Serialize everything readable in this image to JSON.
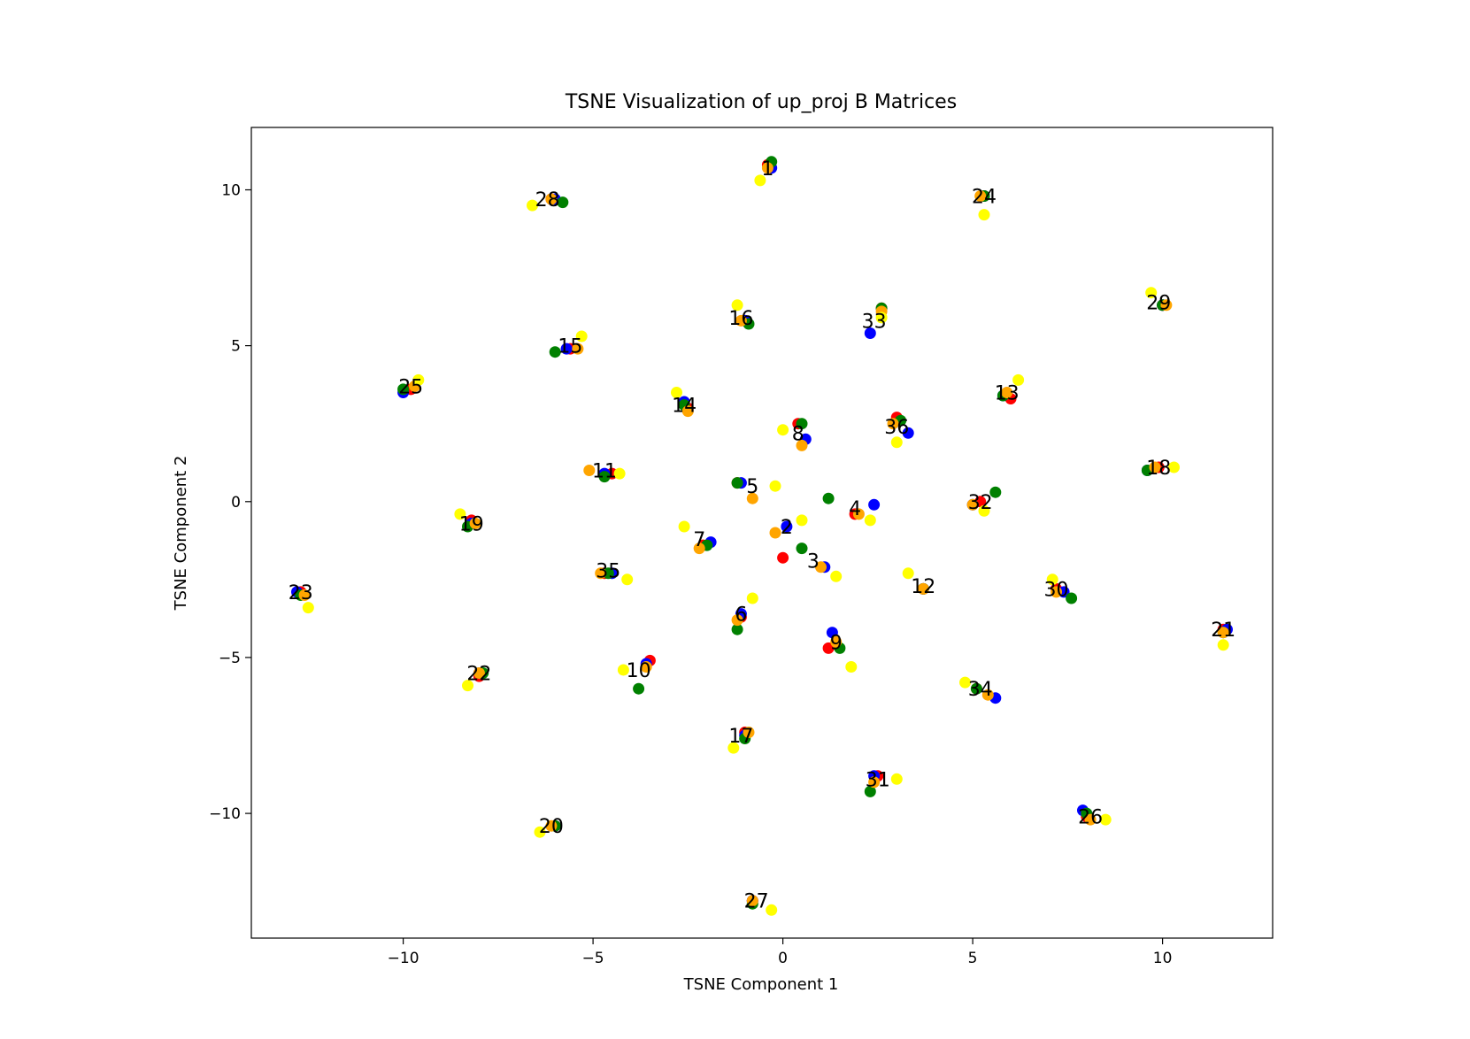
{
  "chart_data": {
    "type": "scatter",
    "title": "TSNE Visualization of up_proj B Matrices",
    "xlabel": "TSNE Component 1",
    "ylabel": "TSNE Component 2",
    "xlim": [
      -14.0,
      12.9
    ],
    "ylim": [
      -14.0,
      12.0
    ],
    "xticks": [
      -10,
      -5,
      0,
      5,
      10
    ],
    "xtick_labels": [
      "−10",
      "−5",
      "0",
      "5",
      "10"
    ],
    "yticks": [
      -10,
      -5,
      0,
      5,
      10
    ],
    "ytick_labels": [
      "−10",
      "−5",
      "0",
      "5",
      "10"
    ],
    "grid": false,
    "colors": {
      "red": "#ff0000",
      "blue": "#0000ff",
      "green": "#008000",
      "orange": "#ffa500",
      "yellow": "#ffff00"
    },
    "series": [
      {
        "color": "#ff0000",
        "points": [
          [
            -0.4,
            10.8
          ],
          [
            -6.1,
            9.7
          ],
          [
            5.3,
            9.8
          ],
          [
            10,
            6.3
          ],
          [
            2.6,
            6.2
          ],
          [
            -1,
            5.8
          ],
          [
            -5.6,
            4.9
          ],
          [
            -9.8,
            3.6
          ],
          [
            -2.5,
            3
          ],
          [
            6,
            3.3
          ],
          [
            0.4,
            2.5
          ],
          [
            3,
            2.7
          ],
          [
            9.9,
            1.1
          ],
          [
            -4.5,
            0.9
          ],
          [
            -1.2,
            0.6
          ],
          [
            5.2,
            0
          ],
          [
            1.9,
            -0.4
          ],
          [
            -8.2,
            -0.6
          ],
          [
            -2.1,
            -1.4
          ],
          [
            0,
            -1.8
          ],
          [
            3.7,
            -2.8
          ],
          [
            -12.7,
            -2.9
          ],
          [
            -4.7,
            -2.3
          ],
          [
            7.2,
            -2.8
          ],
          [
            11.6,
            -4.1
          ],
          [
            -1.1,
            -3.7
          ],
          [
            1.2,
            -4.7
          ],
          [
            -8,
            -5.6
          ],
          [
            -3.5,
            -5.1
          ],
          [
            5.1,
            -6
          ],
          [
            -1,
            -7.4
          ],
          [
            2.5,
            -8.8
          ],
          [
            8,
            -10.1
          ],
          [
            -6,
            -10.4
          ],
          [
            -0.8,
            -12.8
          ]
        ]
      },
      {
        "color": "#0000ff",
        "points": [
          [
            -0.3,
            10.7
          ],
          [
            -6,
            9.7
          ],
          [
            5.3,
            9.8
          ],
          [
            10,
            6.3
          ],
          [
            2.3,
            5.4
          ],
          [
            -1,
            5.8
          ],
          [
            -5.7,
            4.9
          ],
          [
            -10,
            3.5
          ],
          [
            -2.6,
            3.2
          ],
          [
            5.8,
            3.4
          ],
          [
            0.6,
            2
          ],
          [
            3.3,
            2.2
          ],
          [
            9.6,
            1
          ],
          [
            -4.7,
            0.9
          ],
          [
            -1.1,
            0.6
          ],
          [
            2.4,
            -0.1
          ],
          [
            5,
            -0.1
          ],
          [
            -8.2,
            -0.7
          ],
          [
            -1.9,
            -1.3
          ],
          [
            0.1,
            -0.8
          ],
          [
            1.1,
            -2.1
          ],
          [
            3.7,
            -2.8
          ],
          [
            -12.8,
            -2.9
          ],
          [
            -4.5,
            -2.3
          ],
          [
            7.4,
            -2.9
          ],
          [
            11.7,
            -4.1
          ],
          [
            -1.1,
            -3.6
          ],
          [
            1.3,
            -4.2
          ],
          [
            -8,
            -5.5
          ],
          [
            -3.6,
            -5.2
          ],
          [
            5.6,
            -6.3
          ],
          [
            -1,
            -7.5
          ],
          [
            2.4,
            -8.8
          ],
          [
            7.9,
            -9.9
          ],
          [
            -6,
            -10.4
          ],
          [
            -0.8,
            -12.8
          ]
        ]
      },
      {
        "color": "#008000",
        "points": [
          [
            -0.3,
            10.9
          ],
          [
            -5.8,
            9.6
          ],
          [
            5.3,
            9.8
          ],
          [
            10,
            6.3
          ],
          [
            2.6,
            6.2
          ],
          [
            -0.9,
            5.7
          ],
          [
            -6,
            4.8
          ],
          [
            -10,
            3.6
          ],
          [
            -2.6,
            3.1
          ],
          [
            5.8,
            3.4
          ],
          [
            0.5,
            2.5
          ],
          [
            3.1,
            2.6
          ],
          [
            9.6,
            1
          ],
          [
            -4.7,
            0.8
          ],
          [
            -1.2,
            0.6
          ],
          [
            1.2,
            0.1
          ],
          [
            5.6,
            0.3
          ],
          [
            -8.3,
            -0.8
          ],
          [
            -2,
            -1.4
          ],
          [
            0.5,
            -1.5
          ],
          [
            7.6,
            -3.1
          ],
          [
            3.7,
            -2.8
          ],
          [
            -12.7,
            -3
          ],
          [
            -4.6,
            -2.3
          ],
          [
            11.6,
            -4.2
          ],
          [
            -1.2,
            -4.1
          ],
          [
            1.5,
            -4.7
          ],
          [
            -7.9,
            -5.5
          ],
          [
            -3.8,
            -6
          ],
          [
            5.1,
            -6
          ],
          [
            -1,
            -7.6
          ],
          [
            2.3,
            -9.3
          ],
          [
            8,
            -10
          ],
          [
            -6,
            -10.4
          ],
          [
            -0.8,
            -12.9
          ]
        ]
      },
      {
        "color": "#ffa500",
        "points": [
          [
            -0.4,
            10.7
          ],
          [
            -6.1,
            9.7
          ],
          [
            5.2,
            9.8
          ],
          [
            10.1,
            6.3
          ],
          [
            2.6,
            6.1
          ],
          [
            -1.1,
            5.8
          ],
          [
            -5.4,
            4.9
          ],
          [
            -9.7,
            3.7
          ],
          [
            -2.5,
            2.9
          ],
          [
            5.9,
            3.5
          ],
          [
            0.5,
            1.8
          ],
          [
            2.9,
            2.5
          ],
          [
            9.8,
            1.1
          ],
          [
            -5.1,
            1
          ],
          [
            -0.8,
            0.1
          ],
          [
            -0.2,
            -1
          ],
          [
            5,
            -0.1
          ],
          [
            2,
            -0.4
          ],
          [
            -8.1,
            -0.7
          ],
          [
            -2.2,
            -1.5
          ],
          [
            1,
            -2.1
          ],
          [
            3.7,
            -2.8
          ],
          [
            -12.6,
            -3
          ],
          [
            -4.8,
            -2.3
          ],
          [
            7.2,
            -2.9
          ],
          [
            11.6,
            -4.2
          ],
          [
            -1.2,
            -3.8
          ],
          [
            1.4,
            -4.5
          ],
          [
            -8,
            -5.5
          ],
          [
            -3.6,
            -5.3
          ],
          [
            5.4,
            -6.2
          ],
          [
            -0.9,
            -7.4
          ],
          [
            2.4,
            -9
          ],
          [
            8.1,
            -10.2
          ],
          [
            -6.1,
            -10.4
          ],
          [
            -0.8,
            -12.8
          ]
        ]
      },
      {
        "color": "#ffff00",
        "points": [
          [
            -0.6,
            10.3
          ],
          [
            -6.6,
            9.5
          ],
          [
            5.3,
            9.2
          ],
          [
            9.7,
            6.7
          ],
          [
            2.6,
            5.9
          ],
          [
            -1.2,
            6.3
          ],
          [
            -5.3,
            5.3
          ],
          [
            -9.6,
            3.9
          ],
          [
            -2.8,
            3.5
          ],
          [
            6.2,
            3.9
          ],
          [
            0,
            2.3
          ],
          [
            3,
            1.9
          ],
          [
            10.3,
            1.1
          ],
          [
            -4.3,
            0.9
          ],
          [
            -0.2,
            0.5
          ],
          [
            -2.6,
            -0.8
          ],
          [
            0.5,
            -0.6
          ],
          [
            2.3,
            -0.6
          ],
          [
            5.3,
            -0.3
          ],
          [
            -8.5,
            -0.4
          ],
          [
            -0.8,
            -3.1
          ],
          [
            1.4,
            -2.4
          ],
          [
            3.3,
            -2.3
          ],
          [
            7.1,
            -2.5
          ],
          [
            -12.5,
            -3.4
          ],
          [
            -4.1,
            -2.5
          ],
          [
            11.6,
            -4.6
          ],
          [
            1.8,
            -5.3
          ],
          [
            -8.3,
            -5.9
          ],
          [
            -4.2,
            -5.4
          ],
          [
            4.8,
            -5.8
          ],
          [
            -1.3,
            -7.9
          ],
          [
            3,
            -8.9
          ],
          [
            8.5,
            -10.2
          ],
          [
            -6.4,
            -10.6
          ],
          [
            -0.3,
            -13.1
          ]
        ]
      }
    ],
    "labels": [
      {
        "text": "1",
        "x": -0.4,
        "y": 10.7
      },
      {
        "text": "2",
        "x": 0.1,
        "y": -0.8
      },
      {
        "text": "3",
        "x": 0.8,
        "y": -1.9
      },
      {
        "text": "4",
        "x": 1.9,
        "y": -0.2
      },
      {
        "text": "5",
        "x": -0.8,
        "y": 0.5
      },
      {
        "text": "6",
        "x": -1.1,
        "y": -3.6
      },
      {
        "text": "7",
        "x": -2.2,
        "y": -1.2
      },
      {
        "text": "8",
        "x": 0.4,
        "y": 2.2
      },
      {
        "text": "9",
        "x": 1.4,
        "y": -4.5
      },
      {
        "text": "10",
        "x": -3.8,
        "y": -5.4
      },
      {
        "text": "11",
        "x": -4.7,
        "y": 1
      },
      {
        "text": "12",
        "x": 3.7,
        "y": -2.7
      },
      {
        "text": "13",
        "x": 5.9,
        "y": 3.5
      },
      {
        "text": "14",
        "x": -2.6,
        "y": 3.1
      },
      {
        "text": "15",
        "x": -5.6,
        "y": 5
      },
      {
        "text": "16",
        "x": -1.1,
        "y": 5.9
      },
      {
        "text": "17",
        "x": -1.1,
        "y": -7.5
      },
      {
        "text": "18",
        "x": 9.9,
        "y": 1.1
      },
      {
        "text": "19",
        "x": -8.2,
        "y": -0.7
      },
      {
        "text": "20",
        "x": -6.1,
        "y": -10.4
      },
      {
        "text": "21",
        "x": 11.6,
        "y": -4.1
      },
      {
        "text": "22",
        "x": -8,
        "y": -5.5
      },
      {
        "text": "23",
        "x": -12.7,
        "y": -2.9
      },
      {
        "text": "24",
        "x": 5.3,
        "y": 9.8
      },
      {
        "text": "25",
        "x": -9.8,
        "y": 3.7
      },
      {
        "text": "26",
        "x": 8.1,
        "y": -10.1
      },
      {
        "text": "27",
        "x": -0.7,
        "y": -12.8
      },
      {
        "text": "28",
        "x": -6.2,
        "y": 9.7
      },
      {
        "text": "29",
        "x": 9.9,
        "y": 6.4
      },
      {
        "text": "30",
        "x": 7.2,
        "y": -2.8
      },
      {
        "text": "31",
        "x": 2.5,
        "y": -8.9
      },
      {
        "text": "32",
        "x": 5.2,
        "y": 0
      },
      {
        "text": "33",
        "x": 2.4,
        "y": 5.8
      },
      {
        "text": "34",
        "x": 5.2,
        "y": -6
      },
      {
        "text": "35",
        "x": -4.6,
        "y": -2.2
      },
      {
        "text": "36",
        "x": 3,
        "y": 2.4
      }
    ]
  }
}
